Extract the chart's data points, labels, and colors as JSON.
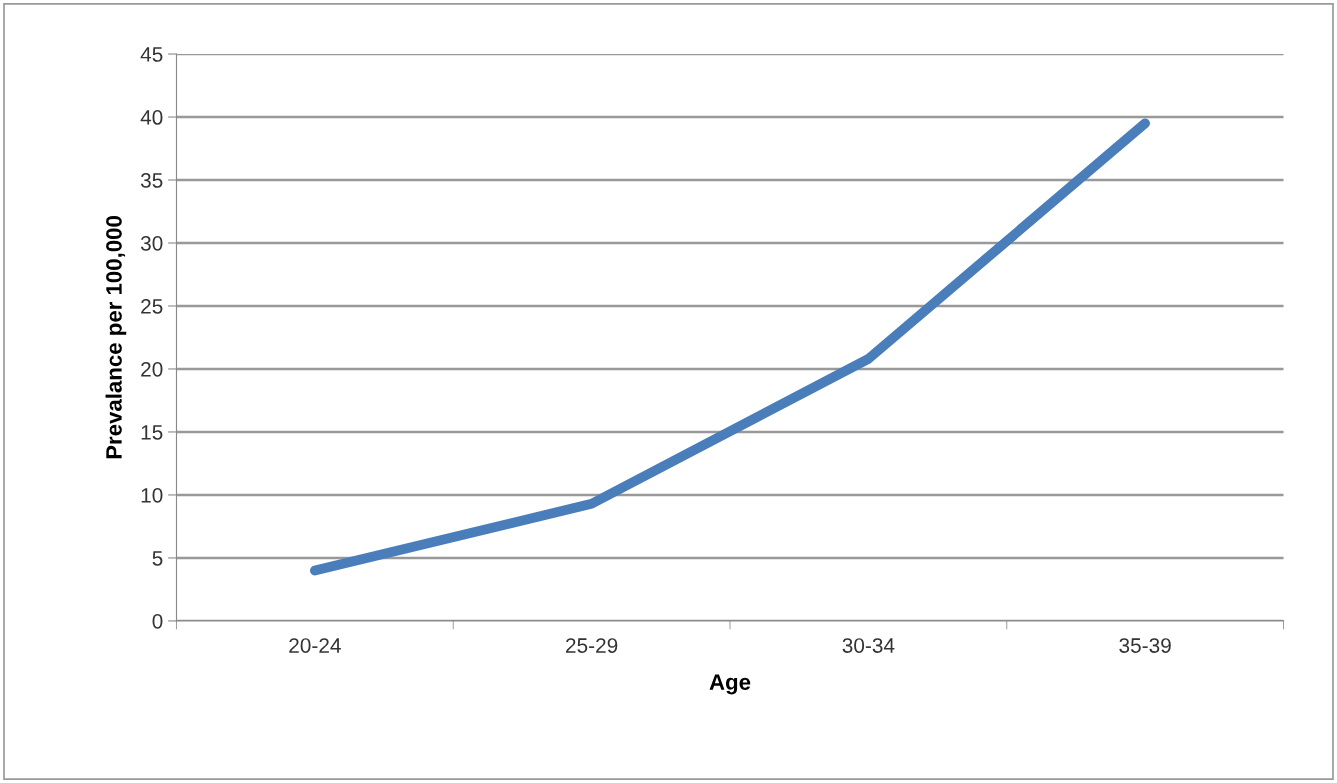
{
  "chart_data": {
    "type": "line",
    "xlabel": "Age",
    "ylabel": "Prevalance per 100,000",
    "categories": [
      "20-24",
      "25-29",
      "30-34",
      "35-39"
    ],
    "series": [
      {
        "color": "#4a7ebb",
        "values": [
          4,
          9.3,
          20.8,
          39.5
        ]
      }
    ],
    "ylim": [
      0,
      45
    ],
    "yticks": [
      0,
      5,
      10,
      15,
      20,
      25,
      30,
      35,
      40,
      45
    ],
    "grid": "y",
    "marker": "none",
    "line_style": "solid"
  }
}
